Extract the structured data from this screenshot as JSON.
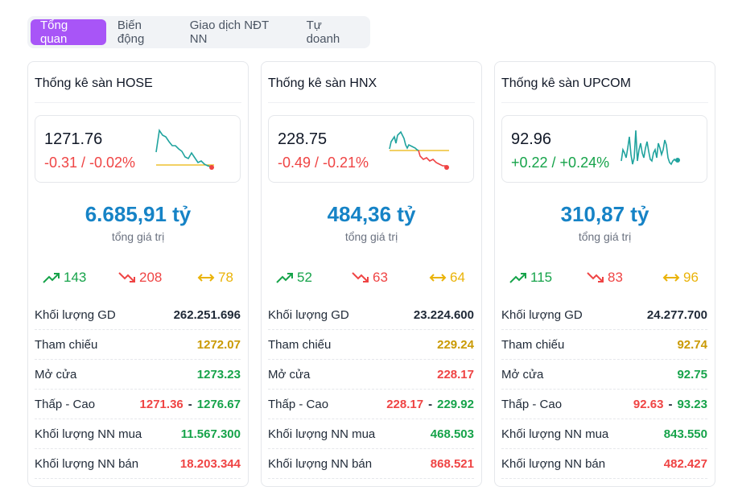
{
  "tabs": [
    {
      "label": "Tổng quan",
      "active": true
    },
    {
      "label": "Biến động",
      "active": false
    },
    {
      "label": "Giao dịch NĐT NN",
      "active": false
    },
    {
      "label": "Tự doanh",
      "active": false
    }
  ],
  "colors": {
    "accent": "#a855f7",
    "up": "#16a34a",
    "down": "#ef4444",
    "reference": "#eab308",
    "sparkline": "#20a39e",
    "total": "#1683c6"
  },
  "total_label": "tổng giá trị",
  "stat_labels": {
    "volume": "Khối lượng GD",
    "reference": "Tham chiếu",
    "open": "Mở cửa",
    "low_high": "Thấp - Cao",
    "foreign_buy": "Khối lượng NN mua",
    "foreign_sell": "Khối lượng NN bán"
  },
  "icons": {
    "up": "trending-up-icon",
    "down": "trending-down-icon",
    "flat": "arrows-horizontal-icon"
  },
  "cards": [
    {
      "title": "Thống kê sàn HOSE",
      "price": "1271.76",
      "change": "-0.31 / -0.02%",
      "direction": "down",
      "total": "6.685,91 tỷ",
      "advances": "143",
      "declines": "208",
      "unchanged": "78",
      "volume": "262.251.696",
      "reference": "1272.07",
      "open": "1273.23",
      "low": "1271.36",
      "high": "1276.67",
      "foreign_buy": "11.567.300",
      "foreign_sell": "18.203.344"
    },
    {
      "title": "Thống kê sàn HNX",
      "price": "228.75",
      "change": "-0.49 / -0.21%",
      "direction": "down",
      "total": "484,36 tỷ",
      "advances": "52",
      "declines": "63",
      "unchanged": "64",
      "volume": "23.224.600",
      "reference": "229.24",
      "open": "228.17",
      "low": "228.17",
      "high": "229.92",
      "foreign_buy": "468.503",
      "foreign_sell": "868.521"
    },
    {
      "title": "Thống kê sàn UPCOM",
      "price": "92.96",
      "change": "+0.22 / +0.24%",
      "direction": "up",
      "total": "310,87 tỷ",
      "advances": "115",
      "declines": "83",
      "unchanged": "96",
      "volume": "24.277.700",
      "reference": "92.74",
      "open": "92.75",
      "low": "92.63",
      "high": "93.23",
      "foreign_buy": "843.550",
      "foreign_sell": "482.427"
    }
  ]
}
